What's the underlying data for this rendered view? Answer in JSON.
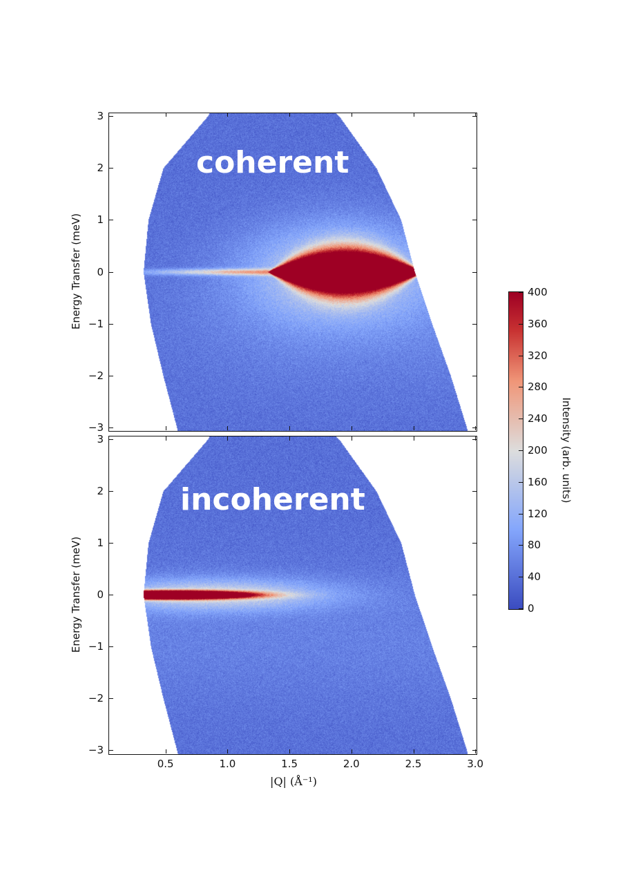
{
  "chart_data": [
    {
      "type": "heatmap",
      "panel_label": "coherent",
      "xlabel": "",
      "ylabel": "Energy Transfer (meV)",
      "xlim": [
        0.05,
        3.0
      ],
      "ylim": [
        -3.07,
        3.07
      ],
      "yticks": [
        "3",
        "2",
        "1",
        "0",
        "−1",
        "−2",
        "−3"
      ],
      "xticks": [],
      "feature": "intense broad peak centered near |Q|≈1.9 Å⁻¹, E=0"
    },
    {
      "type": "heatmap",
      "panel_label": "incoherent",
      "xlabel": "|Q| (Å⁻¹)",
      "ylabel": "Energy Transfer (meV)",
      "xlim": [
        0.05,
        3.0
      ],
      "ylim": [
        -3.07,
        3.07
      ],
      "yticks": [
        "3",
        "2",
        "1",
        "0",
        "−1",
        "−2",
        "−3"
      ],
      "xticks": [
        "0.5",
        "1.0",
        "1.5",
        "2.0",
        "2.5",
        "3.0"
      ],
      "feature": "narrow elastic line strongest at low |Q| (0.3–1.2 Å⁻¹)"
    }
  ],
  "colorbar": {
    "label": "Intensity (arb. units)",
    "range": [
      0,
      400
    ],
    "ticks": [
      "400",
      "360",
      "320",
      "280",
      "240",
      "200",
      "160",
      "120",
      "80",
      "40",
      "0"
    ],
    "colormap": "coolwarm",
    "colors": [
      "#3b4cc0",
      "#dddddd",
      "#9e0022"
    ]
  }
}
